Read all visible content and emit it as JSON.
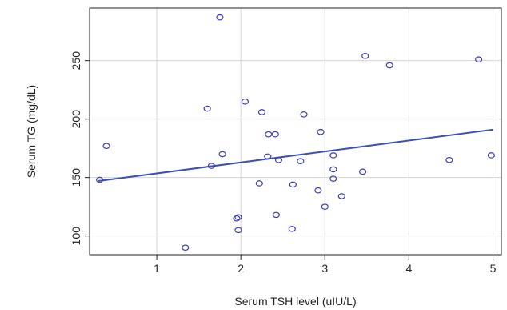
{
  "chart_data": {
    "type": "scatter",
    "title": "",
    "xlabel": "Serum TSH level (uIU/L)",
    "ylabel": "Serum TG (mg/dL)",
    "xlim": [
      0.2,
      5.1
    ],
    "ylim": [
      84,
      295
    ],
    "x_ticks": [
      1,
      2,
      3,
      4,
      5
    ],
    "y_ticks": [
      100,
      150,
      200,
      250
    ],
    "grid": true,
    "colors": {
      "points": "#3b3bb5",
      "fit_line": "#3a4fb0",
      "grid": "#d3d3d3",
      "axis": "#222222"
    },
    "series": [
      {
        "points": [
          [
            0.32,
            148
          ],
          [
            0.4,
            177
          ],
          [
            1.34,
            90
          ],
          [
            1.6,
            209
          ],
          [
            1.65,
            160
          ],
          [
            1.75,
            287
          ],
          [
            1.78,
            170
          ],
          [
            1.95,
            115
          ],
          [
            1.97,
            116
          ],
          [
            1.97,
            105
          ],
          [
            2.05,
            215
          ],
          [
            2.22,
            145
          ],
          [
            2.25,
            206
          ],
          [
            2.32,
            168
          ],
          [
            2.33,
            187
          ],
          [
            2.41,
            187
          ],
          [
            2.42,
            118
          ],
          [
            2.45,
            165
          ],
          [
            2.61,
            106
          ],
          [
            2.62,
            144
          ],
          [
            2.71,
            164
          ],
          [
            2.75,
            204
          ],
          [
            2.92,
            139
          ],
          [
            2.95,
            189
          ],
          [
            3.0,
            125
          ],
          [
            3.1,
            169
          ],
          [
            3.1,
            157
          ],
          [
            3.1,
            149
          ],
          [
            3.2,
            134
          ],
          [
            3.45,
            155
          ],
          [
            3.48,
            254
          ],
          [
            3.77,
            246
          ],
          [
            4.48,
            165
          ],
          [
            4.83,
            251
          ],
          [
            4.98,
            169
          ]
        ]
      }
    ],
    "fit_line": {
      "x": [
        0.3,
        5.0
      ],
      "y": [
        147,
        191
      ]
    }
  }
}
